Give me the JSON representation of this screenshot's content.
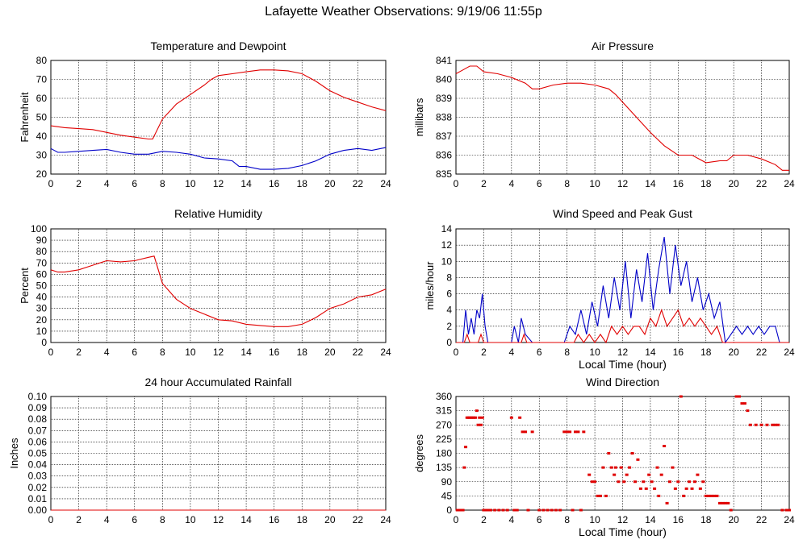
{
  "page": {
    "title": "Lafayette Weather Observations: 9/19/06 11:55p"
  },
  "colors": {
    "red": "#e00000",
    "blue": "#0000c8",
    "grid": "#000000"
  },
  "chart_data": [
    {
      "id": "temp",
      "type": "line",
      "title": "Temperature and Dewpoint",
      "xlabel": "",
      "ylabel": "Fahrenheit",
      "xlim": [
        0,
        24
      ],
      "ylim": [
        20,
        80
      ],
      "xticks": [
        0,
        2,
        4,
        6,
        8,
        10,
        12,
        14,
        16,
        18,
        20,
        22,
        24
      ],
      "yticks": [
        20,
        30,
        40,
        50,
        60,
        70,
        80
      ],
      "grid": true,
      "series": [
        {
          "color": "#e00000",
          "x": [
            0,
            1,
            2,
            3,
            4,
            5,
            6,
            7,
            7.3,
            8,
            9,
            10,
            11,
            11.5,
            12,
            13,
            14,
            15,
            16,
            17,
            18,
            19,
            20,
            21,
            22,
            23,
            24
          ],
          "y": [
            45.5,
            44.5,
            44,
            43.5,
            42,
            40.5,
            39.5,
            38.5,
            38.5,
            49,
            57,
            62,
            67,
            70,
            72,
            73,
            74,
            75,
            75,
            74.5,
            73,
            69,
            64,
            60.5,
            58,
            55.5,
            53.5
          ]
        },
        {
          "color": "#0000c8",
          "x": [
            0,
            0.5,
            1,
            2,
            3,
            4,
            5,
            6,
            7,
            8,
            9,
            10,
            11,
            12,
            13,
            13.5,
            14,
            15,
            16,
            17,
            18,
            19,
            20,
            21,
            22,
            23,
            24
          ],
          "y": [
            33.5,
            31.5,
            31.5,
            32,
            32.5,
            33,
            31.5,
            30.5,
            30.5,
            32,
            31.5,
            30.5,
            28.5,
            28,
            27,
            24,
            24,
            22.5,
            22.5,
            23,
            24.5,
            27,
            30.5,
            32.5,
            33.5,
            32.5,
            34
          ]
        }
      ]
    },
    {
      "id": "pressure",
      "type": "line",
      "title": "Air Pressure",
      "xlabel": "",
      "ylabel": "millibars",
      "xlim": [
        0,
        24
      ],
      "ylim": [
        835,
        841
      ],
      "xticks": [
        0,
        2,
        4,
        6,
        8,
        10,
        12,
        14,
        16,
        18,
        20,
        22,
        24
      ],
      "yticks": [
        835,
        836,
        837,
        838,
        839,
        840,
        841
      ],
      "grid": true,
      "series": [
        {
          "color": "#e00000",
          "x": [
            0,
            0.5,
            1,
            1.5,
            2,
            3,
            4,
            5,
            5.5,
            6,
            7,
            8,
            9,
            10,
            11,
            11.5,
            12,
            13,
            14,
            15,
            16,
            17,
            18,
            19,
            19.5,
            20,
            21,
            22,
            23,
            23.5,
            24
          ],
          "y": [
            840.3,
            840.5,
            840.7,
            840.7,
            840.4,
            840.3,
            840.1,
            839.8,
            839.5,
            839.5,
            839.7,
            839.8,
            839.8,
            839.7,
            839.5,
            839.2,
            838.8,
            838.0,
            837.2,
            836.5,
            836.0,
            836.0,
            835.6,
            835.7,
            835.7,
            836.0,
            836.0,
            835.8,
            835.5,
            835.2,
            835.2
          ]
        }
      ]
    },
    {
      "id": "humidity",
      "type": "line",
      "title": "Relative Humidity",
      "xlabel": "",
      "ylabel": "Percent",
      "xlim": [
        0,
        24
      ],
      "ylim": [
        0,
        100
      ],
      "xticks": [
        0,
        2,
        4,
        6,
        8,
        10,
        12,
        14,
        16,
        18,
        20,
        22,
        24
      ],
      "yticks": [
        0,
        10,
        20,
        30,
        40,
        50,
        60,
        70,
        80,
        90,
        100
      ],
      "grid": true,
      "series": [
        {
          "color": "#e00000",
          "x": [
            0,
            0.5,
            1,
            2,
            3,
            4,
            5,
            6,
            7,
            7.4,
            8,
            9,
            10,
            11,
            12,
            13,
            14,
            15,
            16,
            17,
            18,
            19,
            20,
            21,
            22,
            23,
            24
          ],
          "y": [
            64,
            62,
            62,
            64,
            68,
            72,
            71,
            72,
            75,
            76,
            52,
            38,
            30,
            25,
            20,
            19,
            16,
            15,
            14,
            14,
            16,
            22,
            30,
            34,
            40,
            42,
            47
          ]
        }
      ]
    },
    {
      "id": "wind",
      "type": "line",
      "title": "Wind Speed and Peak Gust",
      "xlabel": "Local Time (hour)",
      "ylabel": "miles/hour",
      "xlim": [
        0,
        24
      ],
      "ylim": [
        0,
        14
      ],
      "xticks": [
        0,
        2,
        4,
        6,
        8,
        10,
        12,
        14,
        16,
        18,
        20,
        22,
        24
      ],
      "yticks": [
        0,
        2,
        4,
        6,
        8,
        10,
        12,
        14
      ],
      "grid": true,
      "series": [
        {
          "color": "#0000c8",
          "x": [
            0,
            0.5,
            0.7,
            0.9,
            1.1,
            1.3,
            1.5,
            1.7,
            1.9,
            2.1,
            2.3,
            4,
            4.2,
            4.5,
            4.7,
            5,
            5.5,
            7.8,
            8.2,
            8.6,
            9,
            9.4,
            9.8,
            10.2,
            10.6,
            11,
            11.4,
            11.8,
            12.2,
            12.6,
            13,
            13.4,
            13.8,
            14.2,
            14.6,
            15,
            15.4,
            15.8,
            16.2,
            16.6,
            17,
            17.4,
            17.8,
            18.2,
            18.6,
            19,
            19.4,
            19.8,
            20.2,
            20.6,
            21,
            21.4,
            21.8,
            22.2,
            22.6,
            23,
            23.3,
            24
          ],
          "y": [
            0,
            0,
            4,
            1,
            3,
            1,
            4,
            3,
            6,
            2,
            0,
            0,
            2,
            0,
            3,
            1,
            0,
            0,
            2,
            1,
            4,
            1,
            5,
            2,
            7,
            3,
            8,
            4,
            10,
            3,
            9,
            5,
            11,
            4,
            9,
            13,
            6,
            12,
            7,
            10,
            5,
            8,
            4,
            6,
            3,
            5,
            0,
            1,
            2,
            1,
            2,
            1,
            2,
            1,
            2,
            2,
            0,
            0
          ]
        },
        {
          "color": "#e00000",
          "x": [
            0,
            0.6,
            0.8,
            1,
            1.6,
            1.8,
            2,
            2.2,
            4,
            4.7,
            4.9,
            5.1,
            8.5,
            8.8,
            9.2,
            9.6,
            10,
            10.4,
            10.8,
            11.2,
            11.6,
            12,
            12.4,
            12.8,
            13.2,
            13.6,
            14,
            14.4,
            14.8,
            15.2,
            15.6,
            16,
            16.4,
            16.8,
            17.2,
            17.6,
            18,
            18.4,
            18.8,
            19.2,
            24
          ],
          "y": [
            0,
            0,
            1,
            0,
            0,
            1,
            0,
            0,
            0,
            0,
            1,
            0,
            0,
            1,
            0,
            1,
            0,
            1,
            0,
            2,
            1,
            2,
            1,
            2,
            2,
            1,
            3,
            2,
            4,
            2,
            3,
            4,
            2,
            3,
            2,
            3,
            2,
            1,
            2,
            0,
            0
          ]
        }
      ]
    },
    {
      "id": "rain",
      "type": "line",
      "title": "24 hour Accumulated Rainfall",
      "xlabel": "",
      "ylabel": "Inches",
      "xlim": [
        0,
        24
      ],
      "ylim": [
        0,
        0.1
      ],
      "xticks": [
        0,
        2,
        4,
        6,
        8,
        10,
        12,
        14,
        16,
        18,
        20,
        22,
        24
      ],
      "yticks": [
        "0.00",
        "0.01",
        "0.02",
        "0.03",
        "0.04",
        "0.05",
        "0.06",
        "0.07",
        "0.08",
        "0.09",
        "0.10"
      ],
      "grid": true,
      "series": [
        {
          "color": "#e00000",
          "x": [
            0,
            24
          ],
          "y": [
            0,
            0
          ]
        }
      ]
    },
    {
      "id": "direction",
      "type": "scatter",
      "title": "Wind Direction",
      "xlabel": "Local Time (hour)",
      "ylabel": "degrees",
      "xlim": [
        0,
        24
      ],
      "ylim": [
        0,
        360
      ],
      "xticks": [
        0,
        2,
        4,
        6,
        8,
        10,
        12,
        14,
        16,
        18,
        20,
        22,
        24
      ],
      "yticks": [
        0,
        45,
        90,
        135,
        180,
        225,
        270,
        315,
        360
      ],
      "grid": true,
      "series": [
        {
          "color": "#e00000",
          "x": [
            0.1,
            0.3,
            0.5,
            0.6,
            0.7,
            0.8,
            0.9,
            1.0,
            1.1,
            1.2,
            1.3,
            1.4,
            1.5,
            1.6,
            1.7,
            1.8,
            1.9,
            2.0,
            2.1,
            2.2,
            2.3,
            2.5,
            2.8,
            3.1,
            3.4,
            3.7,
            4.0,
            4.2,
            4.4,
            4.6,
            4.8,
            5.0,
            5.2,
            5.5,
            6.0,
            6.3,
            6.6,
            6.9,
            7.2,
            7.5,
            7.8,
            8.0,
            8.2,
            8.4,
            8.6,
            8.8,
            9.0,
            9.2,
            9.6,
            9.8,
            10.0,
            10.2,
            10.4,
            10.6,
            10.8,
            11.0,
            11.2,
            11.4,
            11.5,
            11.7,
            11.9,
            12.1,
            12.3,
            12.5,
            12.7,
            12.9,
            13.1,
            13.3,
            13.5,
            13.7,
            13.9,
            14.1,
            14.3,
            14.5,
            14.6,
            14.8,
            15.0,
            15.2,
            15.4,
            15.6,
            15.8,
            16.0,
            16.2,
            16.4,
            16.6,
            16.8,
            17.0,
            17.2,
            17.4,
            17.6,
            17.8,
            18.0,
            18.2,
            18.4,
            18.6,
            18.8,
            19.0,
            19.2,
            19.4,
            19.6,
            19.8,
            20.2,
            20.4,
            20.6,
            20.8,
            21.0,
            21.2,
            21.6,
            22.0,
            22.4,
            22.8,
            23.0,
            23.2,
            23.5,
            23.8,
            24.0
          ],
          "y": [
            0,
            0,
            0,
            135,
            200,
            293,
            293,
            293,
            293,
            293,
            293,
            293,
            315,
            270,
            293,
            270,
            293,
            0,
            0,
            0,
            0,
            0,
            0,
            0,
            0,
            0,
            293,
            0,
            0,
            293,
            248,
            248,
            0,
            248,
            0,
            0,
            0,
            0,
            0,
            0,
            248,
            248,
            248,
            0,
            248,
            248,
            0,
            248,
            112,
            90,
            90,
            45,
            45,
            135,
            45,
            180,
            135,
            112,
            135,
            90,
            135,
            90,
            112,
            135,
            180,
            90,
            160,
            68,
            90,
            68,
            112,
            90,
            68,
            135,
            45,
            112,
            203,
            22,
            90,
            135,
            68,
            90,
            360,
            45,
            68,
            90,
            68,
            90,
            112,
            68,
            90,
            45,
            45,
            45,
            45,
            45,
            22,
            22,
            22,
            22,
            0,
            360,
            360,
            338,
            338,
            315,
            270,
            270,
            270,
            270,
            270,
            270,
            270,
            0,
            0,
            0
          ]
        }
      ]
    }
  ]
}
